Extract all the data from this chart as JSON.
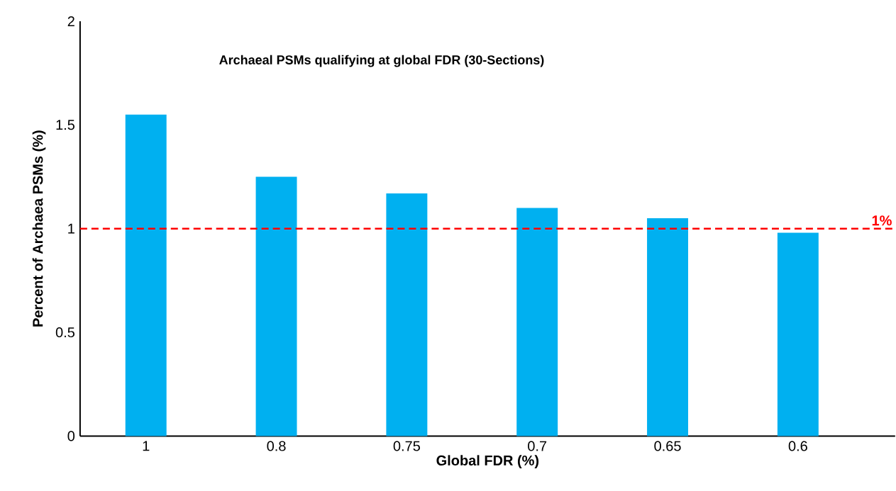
{
  "chart_data": {
    "type": "bar",
    "title": "Archaeal PSMs qualifying at global FDR (30-Sections)",
    "xlabel": "Global FDR (%)",
    "ylabel": "Percent of Archaea PSMs (%)",
    "categories": [
      "1",
      "0.8",
      "0.75",
      "0.7",
      "0.65",
      "0.6"
    ],
    "values": [
      1.55,
      1.25,
      1.17,
      1.1,
      1.05,
      0.98
    ],
    "color": "#00b0f0",
    "ylim": [
      0,
      2
    ],
    "yticks": [
      0,
      0.5,
      1,
      1.5,
      2
    ],
    "grid": false,
    "ref_lines": [
      {
        "axis": "y",
        "value": 1,
        "label": "1%",
        "color": "#ff0000",
        "line_style": "dashed"
      }
    ]
  }
}
